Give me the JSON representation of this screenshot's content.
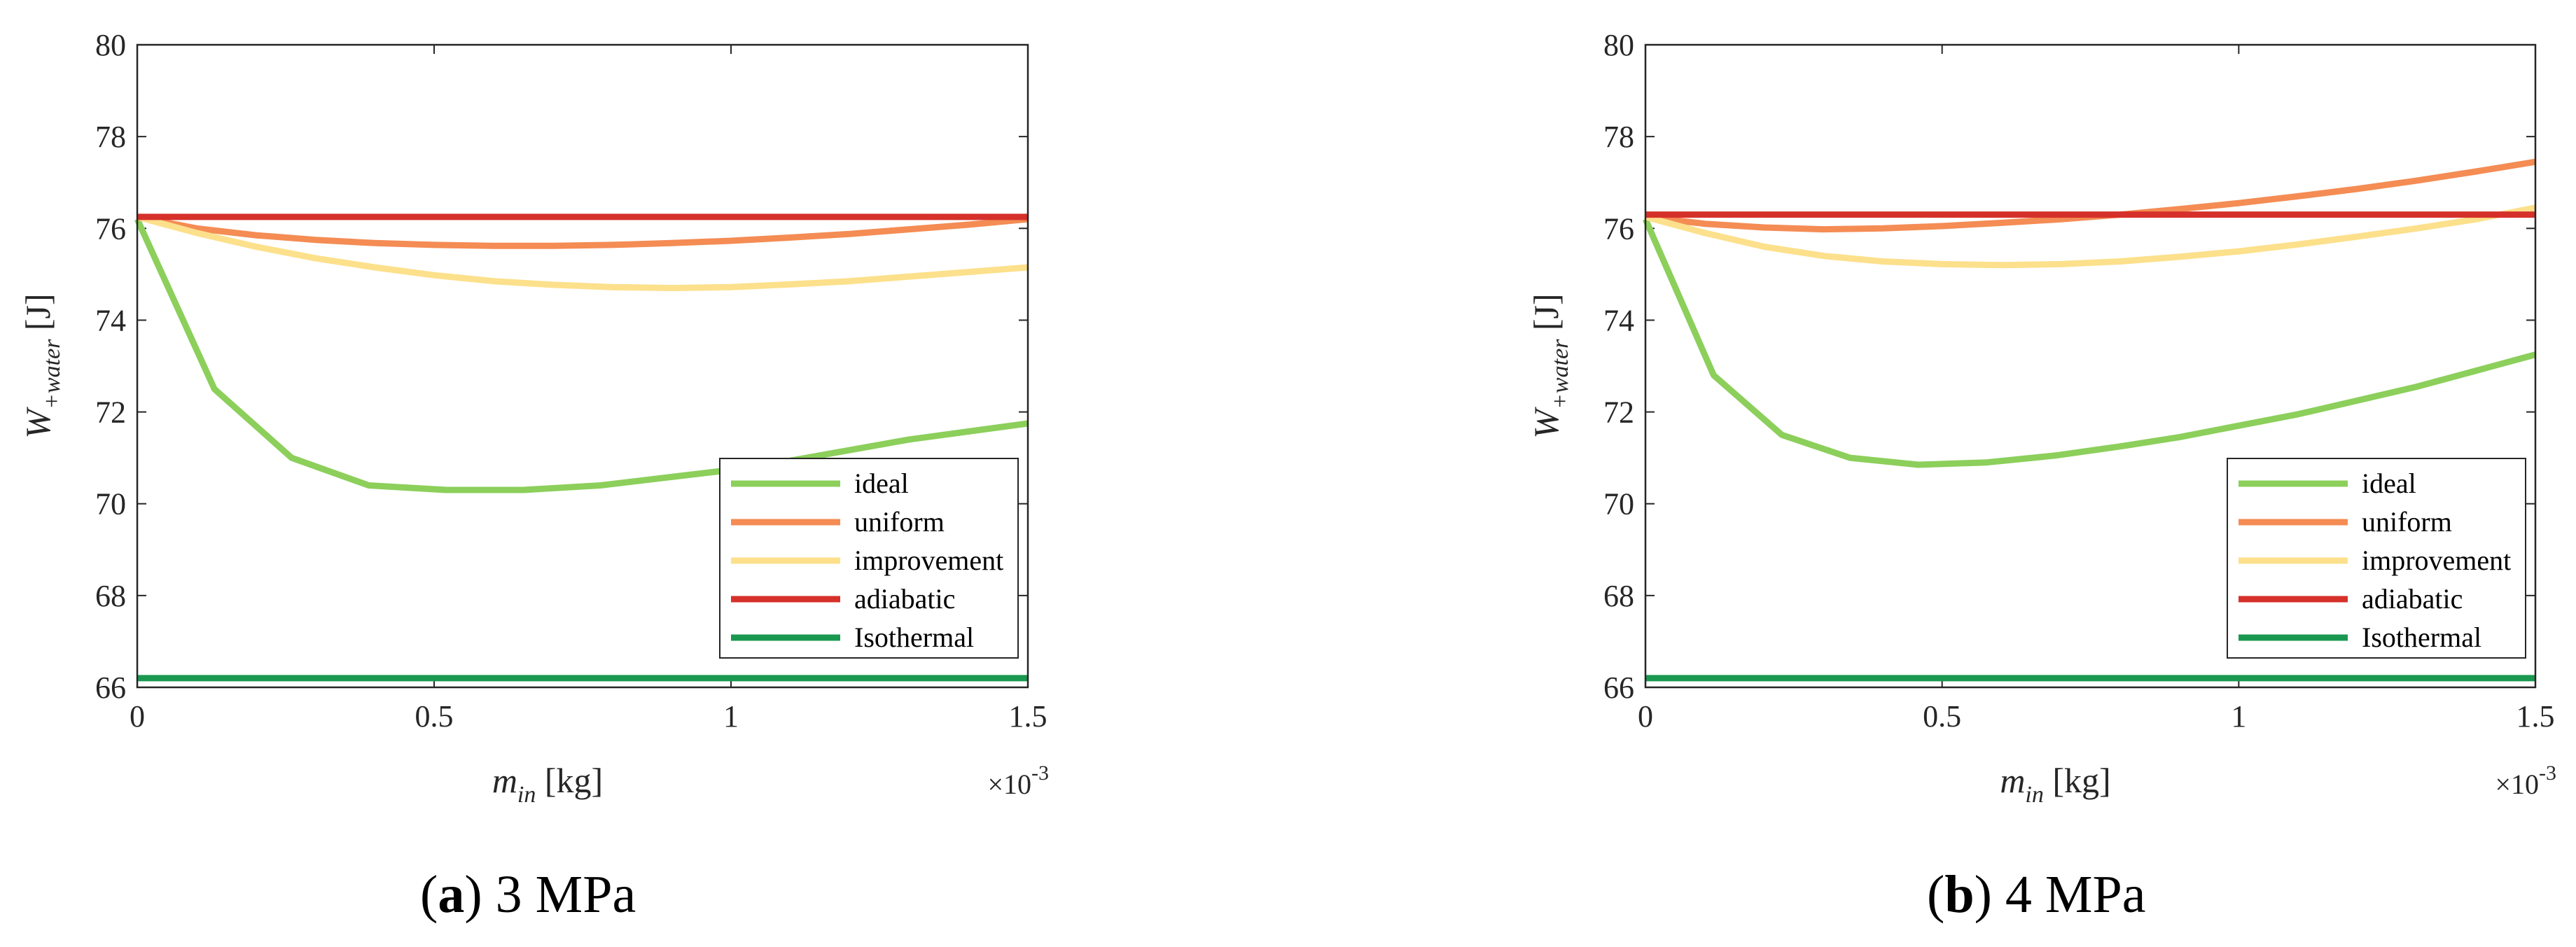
{
  "panel_captions": [
    {
      "paren_open": "(",
      "letter": "a",
      "paren_close": ")",
      "text": " 3 MPa"
    },
    {
      "paren_open": "(",
      "letter": "b",
      "paren_close": ")",
      "text": " 4 MPa"
    }
  ],
  "colors": {
    "ideal": "#8ccf5b",
    "uniform": "#f48c54",
    "improvement": "#fce08b",
    "adiabatic": "#d6302a",
    "isothermal": "#1a9850"
  },
  "chart_data": [
    {
      "type": "line",
      "title": "(a) 3 MPa",
      "xlabel": {
        "main": "m",
        "sub": "in",
        "unit": " [kg]"
      },
      "ylabel": {
        "main": "W",
        "sub": "+water",
        "unit": " [J]"
      },
      "x_multiplier": {
        "base": "×10",
        "exp": "-3"
      },
      "xlim": [
        0,
        1.5
      ],
      "ylim": [
        66,
        80
      ],
      "xticks": [
        0,
        0.5,
        1,
        1.5
      ],
      "xtick_labels": [
        "0",
        "0.5",
        "1",
        "1.5"
      ],
      "yticks": [
        66,
        68,
        70,
        72,
        74,
        76,
        78,
        80
      ],
      "ytick_labels": [
        "66",
        "68",
        "70",
        "72",
        "74",
        "76",
        "78",
        "80"
      ],
      "legend_position": "lower-right",
      "series": [
        {
          "name": "ideal",
          "color_key": "ideal",
          "x": [
            0,
            0.13,
            0.26,
            0.39,
            0.52,
            0.65,
            0.78,
            0.91,
            1.04,
            1.17,
            1.3,
            1.5
          ],
          "y": [
            76.2,
            72.5,
            71.0,
            70.4,
            70.3,
            70.3,
            70.4,
            70.6,
            70.8,
            71.1,
            71.4,
            71.75
          ]
        },
        {
          "name": "uniform",
          "color_key": "uniform",
          "x": [
            0,
            0.1,
            0.2,
            0.3,
            0.4,
            0.5,
            0.6,
            0.7,
            0.8,
            0.9,
            1.0,
            1.1,
            1.2,
            1.3,
            1.4,
            1.5
          ],
          "y": [
            76.25,
            76.0,
            75.85,
            75.75,
            75.68,
            75.64,
            75.62,
            75.62,
            75.64,
            75.68,
            75.73,
            75.8,
            75.88,
            75.98,
            76.08,
            76.2
          ]
        },
        {
          "name": "improvement",
          "color_key": "improvement",
          "x": [
            0,
            0.1,
            0.2,
            0.3,
            0.4,
            0.5,
            0.6,
            0.7,
            0.8,
            0.9,
            1.0,
            1.1,
            1.2,
            1.3,
            1.4,
            1.5
          ],
          "y": [
            76.25,
            75.9,
            75.6,
            75.35,
            75.15,
            74.98,
            74.85,
            74.77,
            74.72,
            74.7,
            74.72,
            74.78,
            74.85,
            74.95,
            75.05,
            75.15
          ]
        },
        {
          "name": "adiabatic",
          "color_key": "adiabatic",
          "x": [
            0,
            1.5
          ],
          "y": [
            76.25,
            76.25
          ]
        },
        {
          "name": "Isothermal",
          "color_key": "isothermal",
          "x": [
            0,
            1.5
          ],
          "y": [
            66.2,
            66.2
          ]
        }
      ]
    },
    {
      "type": "line",
      "title": "(b) 4 MPa",
      "xlabel": {
        "main": "m",
        "sub": "in",
        "unit": " [kg]"
      },
      "ylabel": {
        "main": "W",
        "sub": "+water",
        "unit": " [J]"
      },
      "x_multiplier": {
        "base": "×10",
        "exp": "-3"
      },
      "xlim": [
        0,
        1.5
      ],
      "ylim": [
        66,
        80
      ],
      "xticks": [
        0,
        0.5,
        1,
        1.5
      ],
      "xtick_labels": [
        "0",
        "0.5",
        "1",
        "1.5"
      ],
      "yticks": [
        66,
        68,
        70,
        72,
        74,
        76,
        78,
        80
      ],
      "ytick_labels": [
        "66",
        "68",
        "70",
        "72",
        "74",
        "76",
        "78",
        "80"
      ],
      "legend_position": "lower-right",
      "series": [
        {
          "name": "ideal",
          "color_key": "ideal",
          "x": [
            0,
            0.115,
            0.23,
            0.345,
            0.46,
            0.575,
            0.69,
            0.8,
            0.9,
            1.0,
            1.1,
            1.2,
            1.3,
            1.4,
            1.5
          ],
          "y": [
            76.2,
            72.8,
            71.5,
            71.0,
            70.85,
            70.9,
            71.05,
            71.25,
            71.45,
            71.7,
            71.95,
            72.25,
            72.55,
            72.9,
            73.25
          ]
        },
        {
          "name": "uniform",
          "color_key": "uniform",
          "x": [
            0,
            0.1,
            0.2,
            0.3,
            0.4,
            0.5,
            0.6,
            0.7,
            0.8,
            0.9,
            1.0,
            1.1,
            1.2,
            1.3,
            1.4,
            1.5
          ],
          "y": [
            76.25,
            76.1,
            76.02,
            75.98,
            76.0,
            76.05,
            76.12,
            76.2,
            76.3,
            76.42,
            76.55,
            76.7,
            76.86,
            77.04,
            77.24,
            77.45
          ]
        },
        {
          "name": "improvement",
          "color_key": "improvement",
          "x": [
            0,
            0.1,
            0.2,
            0.3,
            0.4,
            0.5,
            0.6,
            0.7,
            0.8,
            0.9,
            1.0,
            1.1,
            1.2,
            1.3,
            1.4,
            1.5
          ],
          "y": [
            76.25,
            75.9,
            75.6,
            75.4,
            75.28,
            75.22,
            75.2,
            75.22,
            75.28,
            75.38,
            75.5,
            75.65,
            75.82,
            76.0,
            76.2,
            76.45
          ]
        },
        {
          "name": "adiabatic",
          "color_key": "adiabatic",
          "x": [
            0,
            1.5
          ],
          "y": [
            76.3,
            76.3
          ]
        },
        {
          "name": "Isothermal",
          "color_key": "isothermal",
          "x": [
            0,
            1.5
          ],
          "y": [
            66.2,
            66.2
          ]
        }
      ]
    }
  ]
}
